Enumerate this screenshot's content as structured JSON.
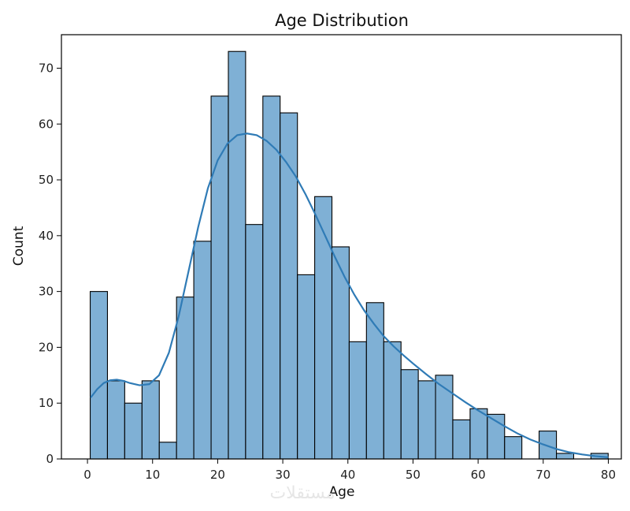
{
  "chart_data": {
    "type": "histogram",
    "title": "Age Distribution",
    "xlabel": "Age",
    "ylabel": "Count",
    "xlim": [
      -4,
      82
    ],
    "ylim": [
      0,
      76
    ],
    "xticks": [
      0,
      10,
      20,
      30,
      40,
      50,
      60,
      70,
      80
    ],
    "yticks": [
      0,
      10,
      20,
      30,
      40,
      50,
      60,
      70
    ],
    "bin_edges": [
      0.42,
      3.07,
      5.72,
      8.38,
      11.03,
      13.68,
      16.33,
      18.99,
      21.64,
      24.29,
      26.94,
      29.59,
      32.25,
      34.9,
      37.55,
      40.2,
      42.85,
      45.51,
      48.16,
      50.81,
      53.46,
      56.11,
      58.77,
      61.42,
      64.07,
      66.72,
      69.37,
      72.03,
      74.68,
      77.33,
      79.98
    ],
    "counts": [
      30,
      14,
      10,
      14,
      3,
      29,
      39,
      65,
      73,
      42,
      65,
      62,
      33,
      47,
      38,
      21,
      28,
      21,
      16,
      14,
      15,
      7,
      9,
      8,
      4,
      0,
      5,
      1,
      0,
      1
    ],
    "bar_color": "#7fb0d5",
    "bar_edge_color": "#000000",
    "kde": {
      "color": "#2f7bb6",
      "x": [
        0.5,
        1.5,
        2.5,
        3.5,
        4.5,
        5.5,
        6.5,
        8,
        9.5,
        11,
        12.5,
        14,
        15.5,
        17,
        18.5,
        20,
        21.5,
        23,
        24.5,
        26,
        27.5,
        29,
        30.5,
        32,
        33.5,
        35,
        36.5,
        38,
        39.5,
        41,
        42.5,
        44,
        45.5,
        47,
        48.5,
        50,
        52,
        54,
        56,
        58,
        60,
        62,
        64,
        66,
        68,
        70,
        72,
        74,
        76,
        78,
        80
      ],
      "y": [
        11,
        12.5,
        13.6,
        14.1,
        14.2,
        14.0,
        13.6,
        13.2,
        13.4,
        15.0,
        19.0,
        25.5,
        33.5,
        41.5,
        48.5,
        53.5,
        56.5,
        58.0,
        58.3,
        58.0,
        57.0,
        55.4,
        53.2,
        50.6,
        47.4,
        43.8,
        40.0,
        36.2,
        32.6,
        29.4,
        26.6,
        24.2,
        22.0,
        20.2,
        18.6,
        17.1,
        15.2,
        13.4,
        11.8,
        10.2,
        8.7,
        7.3,
        5.9,
        4.6,
        3.5,
        2.6,
        1.8,
        1.2,
        0.8,
        0.5,
        0.3
      ]
    }
  },
  "watermark_text": "مستقلات"
}
